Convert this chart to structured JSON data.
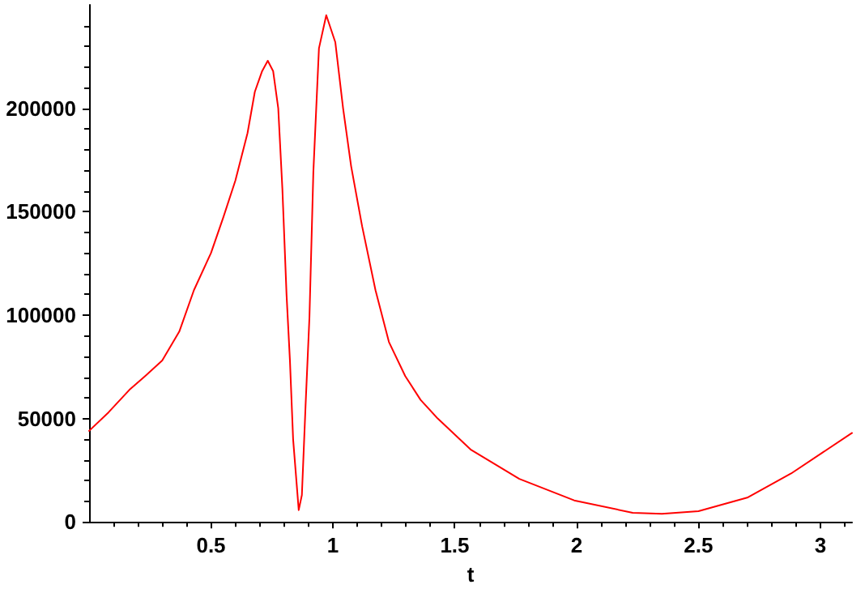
{
  "chart_data": {
    "type": "line",
    "xlabel": "t",
    "xlim": [
      0,
      3.13
    ],
    "xticks": [
      0.5,
      1,
      1.5,
      2,
      2.5,
      3
    ],
    "ylim": [
      0,
      250000
    ],
    "yticks": [
      0,
      50000,
      100000,
      150000,
      200000
    ],
    "grid": false,
    "marker": "none",
    "line_style": "solid",
    "series": [
      {
        "color": "#ff0000",
        "x": [
          0,
          0.08,
          0.165,
          0.23,
          0.3,
          0.37,
          0.43,
          0.5,
          0.55,
          0.6,
          0.65,
          0.68,
          0.71,
          0.733,
          0.755,
          0.776,
          0.793,
          0.81,
          0.824,
          0.837,
          0.86,
          0.873,
          0.888,
          0.904,
          0.92,
          0.943,
          0.973,
          1.01,
          1.042,
          1.075,
          1.12,
          1.175,
          1.23,
          1.297,
          1.36,
          1.43,
          1.565,
          1.765,
          1.99,
          2.23,
          2.35,
          2.5,
          2.7,
          2.88,
          3.13
        ],
        "values": [
          44000,
          53000,
          63800,
          70500,
          78000,
          92000,
          112000,
          130000,
          147000,
          165000,
          188000,
          208000,
          218000,
          223000,
          218000,
          200000,
          161000,
          110000,
          78000,
          40000,
          5700,
          13000,
          56000,
          99000,
          169000,
          229000,
          245000,
          232000,
          200000,
          172000,
          143000,
          112000,
          87000,
          70500,
          59000,
          50000,
          35000,
          20800,
          10400,
          4400,
          3900,
          5200,
          11700,
          23400,
          43000
        ]
      }
    ]
  }
}
